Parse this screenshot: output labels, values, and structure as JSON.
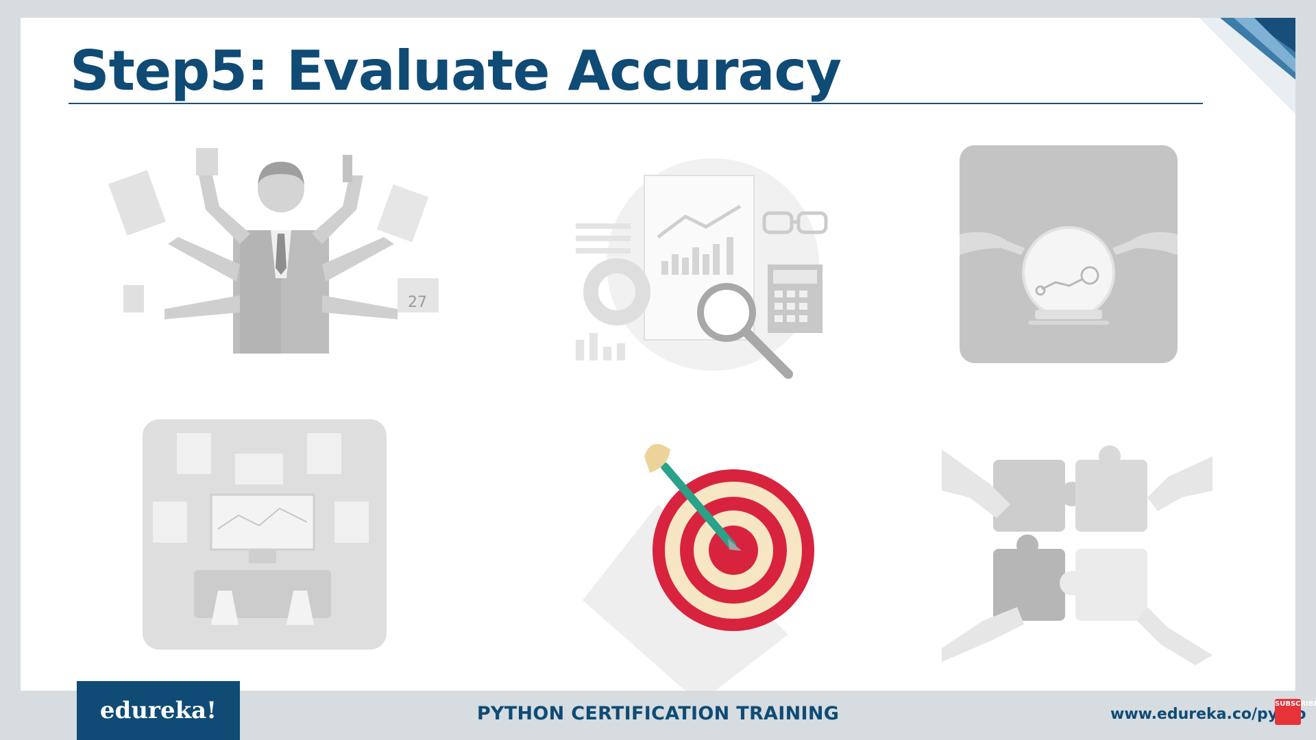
{
  "slide": {
    "title": "Step5: Evaluate Accuracy"
  },
  "illustrations": [
    {
      "name": "multitasking-businessman",
      "calendar_day": "27",
      "state": "faded"
    },
    {
      "name": "data-analysis",
      "state": "faded"
    },
    {
      "name": "crystal-ball-prediction",
      "state": "faded"
    },
    {
      "name": "computer-dashboard",
      "state": "faded"
    },
    {
      "name": "target-with-dart",
      "state": "highlighted"
    },
    {
      "name": "puzzle-hands-teamwork",
      "state": "faded"
    }
  ],
  "footer": {
    "logo": "edureka!",
    "course": "PYTHON CERTIFICATION TRAINING",
    "url": "www.edureka.co/pytho",
    "subscribe_badge": "SUBSCRIBE"
  },
  "colors": {
    "brand_navy": "#0f4b75",
    "faded_gray": "#c9c9c9",
    "target_red": "#d8233e",
    "target_cream": "#f7e6c4",
    "dart_teal": "#2aa189"
  }
}
